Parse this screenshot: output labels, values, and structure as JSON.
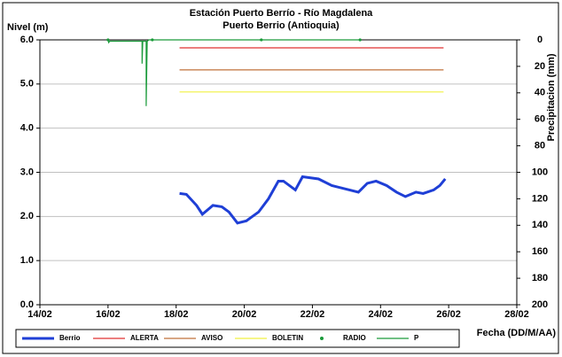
{
  "chart_data": {
    "type": "line",
    "title": "Estación Puerto Berrío - Río Magdalena",
    "subtitle": "Puerto Berrio (Antioquia)",
    "y_label": "Nivel (m)",
    "y2_label": "Precipitacion (mm)",
    "x_label": "Fecha (DD/M/AA)",
    "xlim": [
      14,
      28
    ],
    "xticks": [
      {
        "value": 14,
        "label": "14/02"
      },
      {
        "value": 16,
        "label": "16/02"
      },
      {
        "value": 18,
        "label": "18/02"
      },
      {
        "value": 20,
        "label": "20/02"
      },
      {
        "value": 22,
        "label": "22/02"
      },
      {
        "value": 24,
        "label": "24/02"
      },
      {
        "value": 26,
        "label": "26/02"
      },
      {
        "value": 28,
        "label": "28/02"
      }
    ],
    "ylim": [
      0,
      6
    ],
    "yticks": [
      {
        "value": 0,
        "label": "0.0"
      },
      {
        "value": 1,
        "label": "1.0"
      },
      {
        "value": 2,
        "label": "2.0"
      },
      {
        "value": 3,
        "label": "3.0"
      },
      {
        "value": 4,
        "label": "4.0"
      },
      {
        "value": 5,
        "label": "5.0"
      },
      {
        "value": 6,
        "label": "6.0"
      }
    ],
    "y2lim": [
      200,
      0
    ],
    "y2ticks": [
      0,
      20,
      40,
      60,
      80,
      100,
      120,
      140,
      160,
      180,
      200
    ],
    "grid": true,
    "series": [
      {
        "name": "Berrio",
        "color": "#1f3fd6",
        "style": "line",
        "x": [
          18.1,
          18.3,
          18.6,
          18.77,
          19.08,
          19.34,
          19.55,
          19.8,
          20.06,
          20.24,
          20.42,
          20.71,
          21.0,
          21.15,
          21.5,
          21.71,
          22.18,
          22.57,
          23.09,
          23.35,
          23.61,
          23.87,
          24.18,
          24.47,
          24.73,
          25.04,
          25.25,
          25.56,
          25.74,
          25.9
        ],
        "values": [
          2.52,
          2.5,
          2.25,
          2.05,
          2.25,
          2.22,
          2.1,
          1.85,
          1.9,
          2.0,
          2.1,
          2.4,
          2.8,
          2.8,
          2.6,
          2.9,
          2.85,
          2.7,
          2.6,
          2.55,
          2.75,
          2.8,
          2.7,
          2.55,
          2.45,
          2.55,
          2.52,
          2.6,
          2.7,
          2.85
        ]
      },
      {
        "name": "ALERTA",
        "color": "#e03030",
        "style": "line",
        "x": [
          18.1,
          25.85
        ],
        "values": [
          5.82,
          5.82
        ]
      },
      {
        "name": "AVISO",
        "color": "#c0703a",
        "style": "line",
        "x": [
          18.1,
          25.85
        ],
        "values": [
          5.32,
          5.32
        ]
      },
      {
        "name": "BOLETIN",
        "color": "#f0f040",
        "style": "line",
        "x": [
          18.1,
          25.85
        ],
        "values": [
          4.82,
          4.82
        ]
      },
      {
        "name": "RADIO",
        "color": "#1a9a3a",
        "style": "dot",
        "axis": "y2",
        "x": [
          16.0,
          17.3,
          20.5,
          23.4
        ],
        "values": [
          0,
          0,
          0,
          0
        ]
      },
      {
        "name": "P",
        "color": "#1a9a3a",
        "style": "line",
        "axis": "y2",
        "x": [
          16.0,
          16.02,
          16.05,
          17.0,
          17.0,
          17.02,
          17.12,
          17.12,
          17.15,
          17.2,
          23.4
        ],
        "values": [
          0,
          2,
          1,
          1,
          18,
          1,
          1,
          50,
          1,
          0,
          0
        ]
      }
    ]
  }
}
